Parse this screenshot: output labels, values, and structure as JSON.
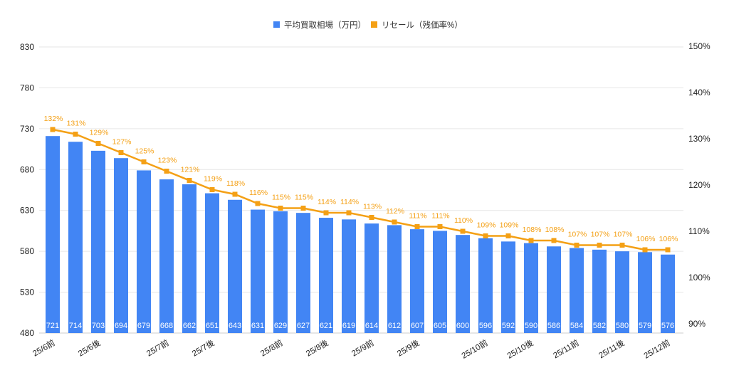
{
  "chart_data": {
    "type": "bar+line",
    "title": "",
    "categories": [
      "25/6前",
      "",
      "25/6後",
      "",
      "",
      "25/7前",
      "",
      "25/7後",
      "",
      "",
      "25/8前",
      "",
      "25/8後",
      "",
      "25/9前",
      "",
      "25/9後",
      "",
      "",
      "25/10前",
      "",
      "25/10後",
      "",
      "25/11前",
      "",
      "25/11後",
      "",
      "25/12前"
    ],
    "series": [
      {
        "name": "平均買取相場（万円）",
        "type": "bar",
        "axis": "left",
        "color": "#4285f4",
        "values": [
          721,
          714,
          703,
          694,
          679,
          668,
          662,
          651,
          643,
          631,
          629,
          627,
          621,
          619,
          614,
          612,
          607,
          605,
          600,
          596,
          592,
          590,
          586,
          584,
          582,
          580,
          579,
          576
        ]
      },
      {
        "name": "リセール（残価率%）",
        "type": "line",
        "axis": "right",
        "color": "#f4a015",
        "values": [
          132,
          131,
          129,
          127,
          125,
          123,
          121,
          119,
          118,
          116,
          115,
          115,
          114,
          114,
          113,
          112,
          111,
          111,
          110,
          109,
          109,
          108,
          108,
          107,
          107,
          107,
          106,
          106
        ]
      }
    ],
    "left_axis": {
      "range": [
        480,
        830
      ],
      "ticks": [
        480,
        530,
        580,
        630,
        680,
        730,
        780,
        830
      ]
    },
    "right_axis": {
      "range": [
        90,
        150
      ],
      "ticks": [
        "90%",
        "100%",
        "110%",
        "120%",
        "130%",
        "140%",
        "150%"
      ]
    },
    "grid": true,
    "legend": "top-center"
  }
}
